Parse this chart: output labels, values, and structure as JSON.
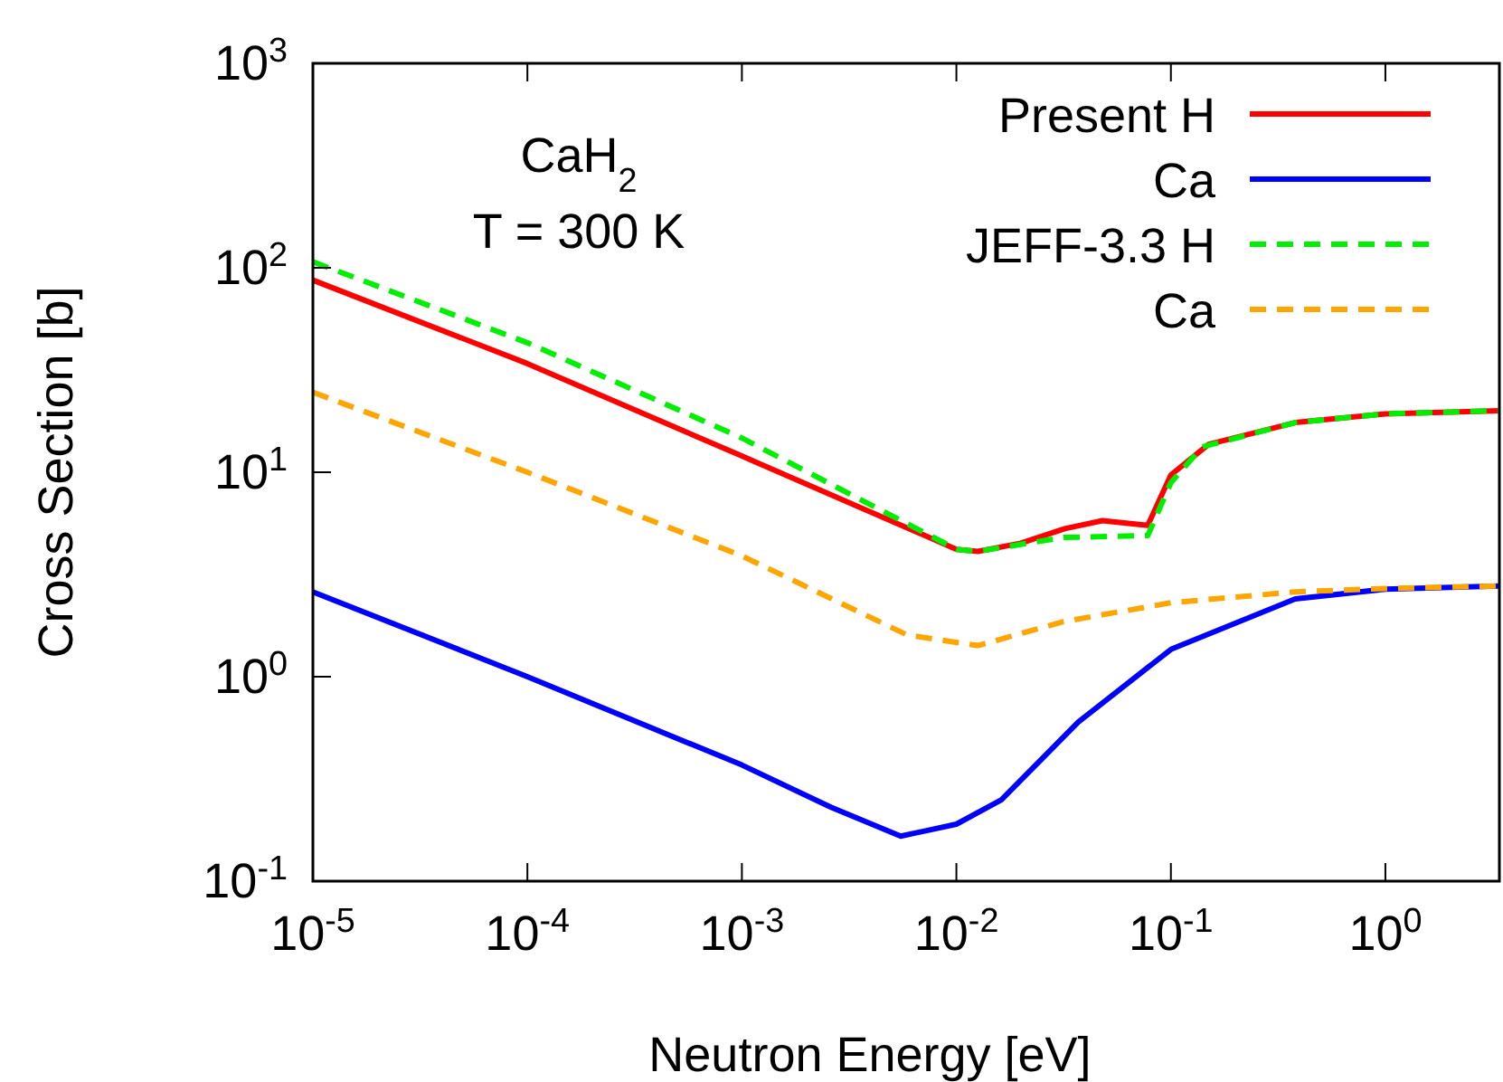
{
  "chart_data": {
    "type": "line",
    "xlabel": "Neutron Energy [eV]",
    "ylabel": "Cross Section  [b]",
    "log": "xy",
    "xlim": [
      1e-05,
      3.4
    ],
    "ylim": [
      0.1,
      1000
    ],
    "xticks": [
      {
        "value": 1e-05,
        "label": "10$^{-5}$"
      },
      {
        "value": 0.0001,
        "label": "10$^{-4}$"
      },
      {
        "value": 0.001,
        "label": "10$^{-3}$"
      },
      {
        "value": 0.01,
        "label": "10$^{-2}$"
      },
      {
        "value": 0.1,
        "label": "10$^{-1}$"
      },
      {
        "value": 1,
        "label": "10$^{0}$"
      }
    ],
    "yticks": [
      {
        "value": 0.1,
        "label": "10$^{-1}$"
      },
      {
        "value": 1,
        "label": "10$^{0}$"
      },
      {
        "value": 10,
        "label": "10$^{1}$"
      },
      {
        "value": 100,
        "label": "10$^{2}$"
      },
      {
        "value": 1000,
        "label": "10$^{3}$"
      }
    ],
    "annotations": [
      "CaH$_{2}$",
      "T = 300 K"
    ],
    "legend": "top right",
    "grid": false,
    "series": [
      {
        "name": "Present H",
        "color": "#ff0000",
        "line_style": "solid",
        "x": [
          1e-05,
          0.0001,
          0.001,
          0.01,
          0.0126,
          0.02,
          0.032,
          0.048,
          0.078,
          0.1,
          0.15,
          0.38,
          1,
          3.4
        ],
        "values": [
          87,
          34,
          12,
          4.2,
          4.1,
          4.5,
          5.3,
          5.8,
          5.5,
          9.7,
          13.7,
          17.5,
          19.3,
          20
        ]
      },
      {
        "name": "Ca",
        "color": "#0000ff",
        "line_style": "solid",
        "x": [
          1e-05,
          0.0001,
          0.001,
          0.0026,
          0.0055,
          0.01,
          0.0162,
          0.037,
          0.1,
          0.38,
          1,
          3.4
        ],
        "values": [
          2.6,
          1,
          0.37,
          0.23,
          0.166,
          0.19,
          0.25,
          0.6,
          1.36,
          2.4,
          2.68,
          2.78
        ]
      },
      {
        "name": "JEFF-3.3 H",
        "color": "#00ee00",
        "line_style": "dashed",
        "x": [
          1e-05,
          0.0001,
          0.001,
          0.01,
          0.0126,
          0.0316,
          0.078,
          0.1,
          0.14,
          0.38,
          1,
          3.4
        ],
        "values": [
          107,
          43,
          14.7,
          4.2,
          4.1,
          4.8,
          4.9,
          8.9,
          13.3,
          17.5,
          19.3,
          20
        ]
      },
      {
        "name": "Ca",
        "color": "#ffa500",
        "line_style": "dashed",
        "x": [
          1e-05,
          0.0001,
          0.001,
          0.0059,
          0.0126,
          0.0316,
          0.1,
          0.38,
          1,
          3.4
        ],
        "values": [
          24.6,
          10,
          3.9,
          1.6,
          1.42,
          1.86,
          2.3,
          2.6,
          2.7,
          2.78
        ]
      }
    ]
  }
}
